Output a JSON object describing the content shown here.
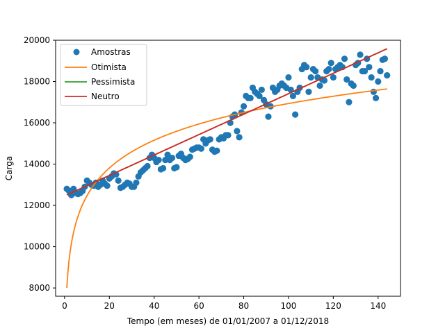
{
  "chart_data": {
    "type": "scatter",
    "title": "",
    "xlabel": "Tempo (em meses) de 01/01/2007 a 01/12/2018",
    "ylabel": "Carga",
    "xlim": [
      -4,
      150
    ],
    "ylim": [
      7600,
      20000
    ],
    "xticks": [
      0,
      20,
      40,
      60,
      80,
      100,
      120,
      140
    ],
    "yticks": [
      8000,
      10000,
      12000,
      14000,
      16000,
      18000,
      20000
    ],
    "grid": false,
    "legend": "top-left",
    "colors": {
      "Amostras": "#1f77b4",
      "Otimista": "#ff7f0e",
      "Pessimista": "#2ca02c",
      "Neutro": "#d62728"
    },
    "series": [
      {
        "name": "Amostras",
        "kind": "scatter",
        "x": [
          1,
          2,
          3,
          4,
          5,
          6,
          7,
          8,
          9,
          10,
          11,
          12,
          13,
          14,
          15,
          16,
          17,
          18,
          19,
          20,
          21,
          22,
          23,
          24,
          25,
          26,
          27,
          28,
          29,
          30,
          31,
          32,
          33,
          34,
          35,
          36,
          37,
          38,
          39,
          40,
          41,
          42,
          43,
          44,
          45,
          46,
          47,
          48,
          49,
          50,
          51,
          52,
          53,
          54,
          55,
          56,
          57,
          58,
          59,
          60,
          61,
          62,
          63,
          64,
          65,
          66,
          67,
          68,
          69,
          70,
          71,
          72,
          73,
          74,
          75,
          76,
          77,
          78,
          79,
          80,
          81,
          82,
          83,
          84,
          85,
          86,
          87,
          88,
          89,
          90,
          91,
          92,
          93,
          94,
          95,
          96,
          97,
          98,
          99,
          100,
          101,
          102,
          103,
          104,
          105,
          106,
          107,
          108,
          109,
          110,
          111,
          112,
          113,
          114,
          115,
          116,
          117,
          118,
          119,
          120,
          121,
          122,
          123,
          124,
          125,
          126,
          127,
          128,
          129,
          130,
          131,
          132,
          133,
          134,
          135,
          136,
          137,
          138,
          139,
          140,
          141,
          142,
          143,
          144
        ],
        "y": [
          12800,
          12700,
          12500,
          12800,
          12600,
          12550,
          12600,
          12700,
          12900,
          13200,
          13100,
          13000,
          12950,
          13100,
          12900,
          13000,
          13200,
          13050,
          12950,
          13300,
          13400,
          13550,
          13500,
          13200,
          12850,
          12900,
          13000,
          13100,
          13050,
          12900,
          12900,
          13100,
          13400,
          13600,
          13700,
          13800,
          13900,
          14300,
          14450,
          14300,
          14100,
          14200,
          13750,
          13800,
          14200,
          14450,
          14200,
          14300,
          13800,
          13850,
          14400,
          14500,
          14300,
          14200,
          14250,
          14350,
          14700,
          14750,
          14800,
          14800,
          14750,
          15200,
          15000,
          15150,
          15200,
          14700,
          14600,
          14650,
          15200,
          15300,
          15250,
          15400,
          15400,
          16000,
          16300,
          16400,
          15600,
          15300,
          16500,
          16800,
          17300,
          17200,
          17200,
          17700,
          17500,
          17400,
          17300,
          17600,
          17100,
          16900,
          16300,
          16800,
          17700,
          17500,
          17600,
          17800,
          17900,
          17800,
          17700,
          18200,
          17600,
          17300,
          16400,
          17500,
          17700,
          18600,
          18800,
          18700,
          17500,
          18200,
          18600,
          18500,
          18200,
          17800,
          18100,
          18050,
          18500,
          18600,
          18900,
          18200,
          18600,
          18700,
          18800,
          18700,
          19100,
          18100,
          17000,
          17900,
          17800,
          18800,
          18900,
          19300,
          18500,
          18500,
          19100,
          18700,
          18200,
          17500,
          17200,
          18000,
          18500,
          19050,
          19100,
          18300
        ]
      },
      {
        "name": "Otimista",
        "kind": "line",
        "model": "log",
        "a": 8000,
        "b": 1940,
        "x_range": [
          1,
          144
        ]
      },
      {
        "name": "Pessimista",
        "kind": "line",
        "model": "linear",
        "a": 12460,
        "b": 49.5,
        "x_range": [
          1,
          144
        ]
      },
      {
        "name": "Neutro",
        "kind": "line",
        "model": "linear",
        "a": 12460,
        "b": 49.5,
        "x_range": [
          1,
          144
        ]
      }
    ]
  }
}
